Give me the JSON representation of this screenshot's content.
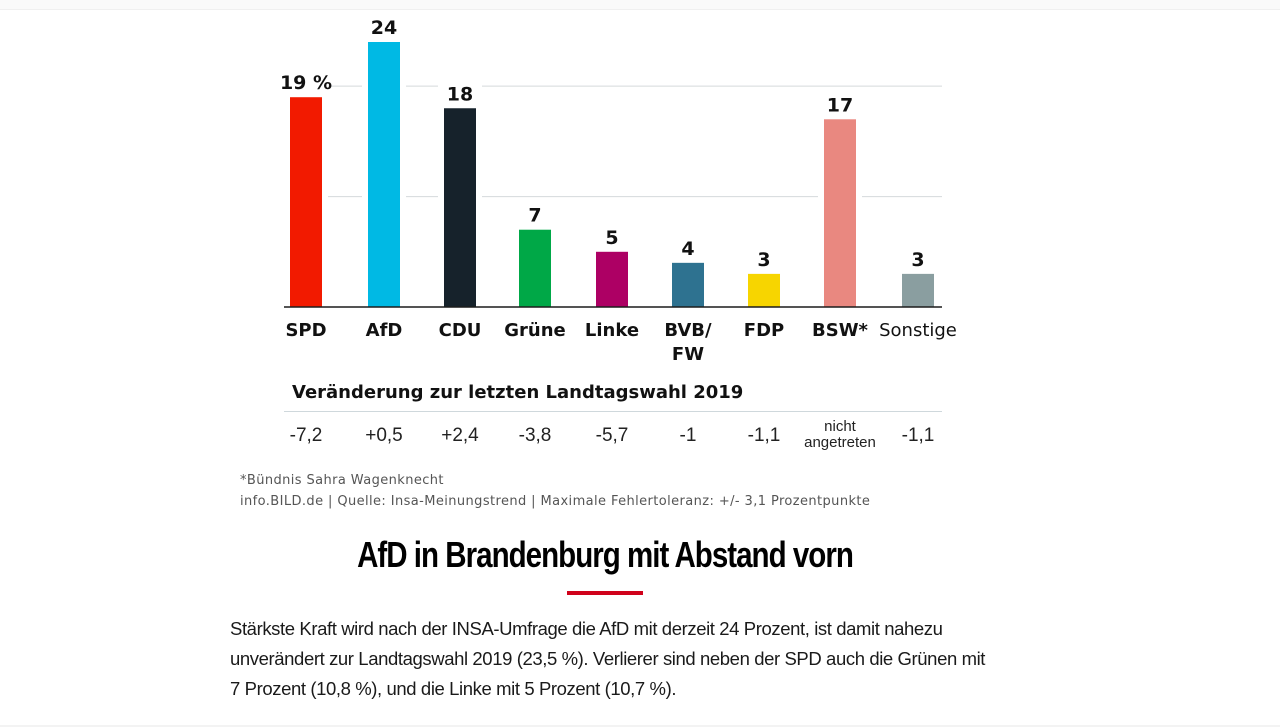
{
  "chart_data": {
    "type": "bar",
    "title": "",
    "categories": [
      "SPD",
      "AfD",
      "CDU",
      "Grüne",
      "Linke",
      "BVB/ FW",
      "FDP",
      "BSW*",
      "Sonstige"
    ],
    "category_lines": [
      [
        "SPD"
      ],
      [
        "AfD"
      ],
      [
        "CDU"
      ],
      [
        "Grüne"
      ],
      [
        "Linke"
      ],
      [
        "BVB/",
        "FW"
      ],
      [
        "FDP"
      ],
      [
        "BSW*"
      ],
      [
        "Sonstige"
      ]
    ],
    "values": [
      19,
      24,
      18,
      7,
      5,
      4,
      3,
      17,
      3
    ],
    "value_labels": [
      "19 %",
      "24",
      "18",
      "7",
      "5",
      "4",
      "3",
      "17",
      "3"
    ],
    "colors": [
      "#f21a00",
      "#00b9e4",
      "#16222b",
      "#00a847",
      "#ad0064",
      "#2e7290",
      "#f7d500",
      "#e98880",
      "#8a9ea0"
    ],
    "unit": "%",
    "xlabel": "",
    "ylabel": "",
    "ylim": [
      0,
      24
    ],
    "gridlines": [
      10,
      20
    ],
    "grid": true,
    "legend": "none",
    "change_title": "Veränderung zur letzten Landtagswahl 2019",
    "changes": [
      "-7,2",
      "+0,5",
      "+2,4",
      "-3,8",
      "-5,7",
      "-1",
      "-1,1",
      "nicht angetreten",
      "-1,1"
    ]
  },
  "footnotes": {
    "bsw": "*Bündnis Sahra Wagenknecht",
    "source": "info.BILD.de | Quelle: Insa-Meinungstrend | Maximale Fehlertoleranz: +/- 3,1 Prozentpunkte"
  },
  "article": {
    "headline": "AfD in Brandenburg mit Abstand vorn",
    "accent_color": "#d0021b",
    "body": "Stärkste Kraft wird nach der INSA-Umfrage die AfD mit derzeit 24 Prozent, ist damit nahezu unverändert zur Landtagswahl  2019 (23,5 %). Verlierer sind neben der SPD auch die Grünen mit 7 Prozent (10,8 %), und die Linke mit 5 Prozent (10,7 %)."
  }
}
